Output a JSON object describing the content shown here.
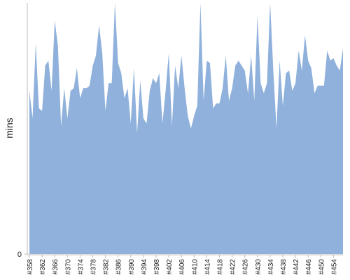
{
  "chart_data": {
    "type": "area",
    "y_label": "mins",
    "color": "#8fb1dc",
    "ylim": [
      0,
      100
    ],
    "yticks": [
      0
    ],
    "categories": [
      "#358",
      null,
      null,
      null,
      "#362",
      null,
      null,
      null,
      "#366",
      null,
      null,
      null,
      "#370",
      null,
      null,
      null,
      "#374",
      null,
      null,
      null,
      "#378",
      null,
      null,
      null,
      "#382",
      null,
      null,
      null,
      "#386",
      null,
      null,
      null,
      "#390",
      null,
      null,
      null,
      "#394",
      null,
      null,
      null,
      "#398",
      null,
      null,
      null,
      "#402",
      null,
      null,
      null,
      "#406",
      null,
      null,
      null,
      "#410",
      null,
      null,
      null,
      "#414",
      null,
      null,
      null,
      "#418",
      null,
      null,
      null,
      "#422",
      null,
      null,
      null,
      "#426",
      null,
      null,
      null,
      "#430",
      null,
      null,
      null,
      "#434",
      null,
      null,
      null,
      "#438",
      null,
      null,
      null,
      "#442",
      null,
      null,
      null,
      "#446",
      null,
      null,
      null,
      "#450",
      null,
      null,
      null,
      "#454",
      null,
      null,
      null
    ],
    "values": [
      65,
      54,
      84,
      58,
      57,
      75,
      77,
      65,
      93,
      83,
      51,
      66,
      54,
      65,
      66,
      74,
      62,
      66,
      66,
      67,
      75,
      79,
      91,
      80,
      57,
      68,
      68,
      100,
      76,
      72,
      62,
      66,
      52,
      74,
      48,
      69,
      54,
      52,
      65,
      70,
      68,
      72,
      52,
      65,
      80,
      51,
      75,
      66,
      79,
      66,
      55,
      50,
      55,
      59,
      100,
      61,
      77,
      76,
      58,
      60,
      60,
      66,
      79,
      61,
      66,
      75,
      77,
      75,
      73,
      64,
      79,
      61,
      95,
      68,
      64,
      68,
      100,
      73,
      50,
      77,
      59,
      72,
      73,
      65,
      68,
      81,
      73,
      87,
      77,
      74,
      64,
      67,
      67,
      67,
      81,
      77,
      78,
      75,
      73,
      82
    ]
  }
}
